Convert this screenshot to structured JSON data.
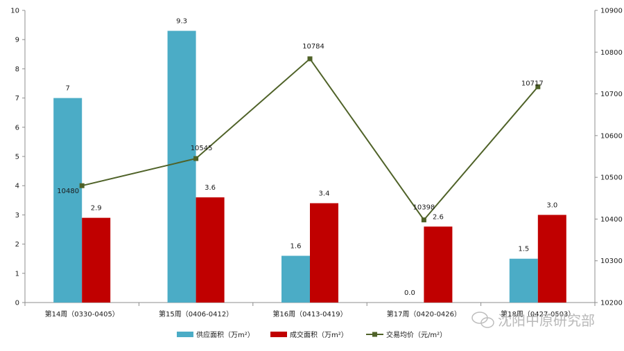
{
  "chart_data": {
    "type": "bar",
    "categories": [
      "第14周（0330-0405）",
      "第15周（0406-0412）",
      "第16周（0413-0419）",
      "第17周（0420-0426）",
      "第18周（0427-0503）"
    ],
    "series": [
      {
        "name": "供应面积（万m²）",
        "type": "bar",
        "axis": "left",
        "color": "#4bacc6",
        "values": [
          7,
          9.3,
          1.6,
          0.0,
          1.5
        ],
        "labels": [
          "7",
          "9.3",
          "1.6",
          "0.0",
          "1.5"
        ]
      },
      {
        "name": "成交面积（万m²）",
        "type": "bar",
        "axis": "left",
        "color": "#c00000",
        "values": [
          2.9,
          3.6,
          3.4,
          2.6,
          3.0
        ],
        "labels": [
          "2.9",
          "3.6",
          "3.4",
          "2.6",
          "3.0"
        ]
      },
      {
        "name": "交易均价（元/m²）",
        "type": "line",
        "axis": "right",
        "color": "#4f6228",
        "values": [
          10480,
          10545,
          10784,
          10398,
          10717
        ],
        "labels": [
          "10480",
          "10545",
          "10784",
          "10398",
          "10717"
        ]
      }
    ],
    "y_left": {
      "range": [
        0,
        10
      ],
      "ticks": [
        "0",
        "1",
        "2",
        "3",
        "4",
        "5",
        "6",
        "7",
        "8",
        "9",
        "10"
      ]
    },
    "y_right": {
      "range": [
        10200,
        10900
      ],
      "ticks": [
        "10200",
        "10300",
        "10400",
        "10500",
        "10600",
        "10700",
        "10800",
        "10900"
      ]
    },
    "grid": false,
    "legend_position": "bottom",
    "watermark": "沈阳中原研究部"
  }
}
